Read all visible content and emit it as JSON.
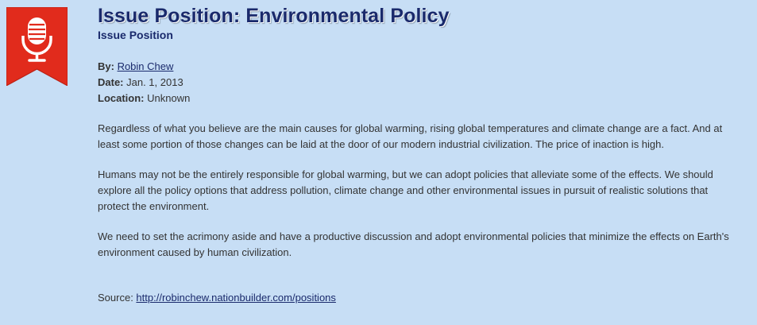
{
  "page": {
    "title": "Issue Position: Environmental Policy",
    "subtitle": "Issue Position",
    "icon": "microphone-ribbon-icon",
    "accent_color": "#e12b1c"
  },
  "meta": {
    "by_label": "By:",
    "author": "Robin Chew",
    "date_label": "Date:",
    "date": "Jan. 1, 2013",
    "location_label": "Location:",
    "location": "Unknown"
  },
  "body": {
    "paragraphs": [
      "Regardless of what you believe are the main causes for global warming, rising global temperatures and climate change are a fact. And at least some portion of those changes can be laid at the door of our modern industrial civilization. The price of inaction is high.",
      "Humans may not be the entirely responsible for global warming, but we can adopt policies that alleviate some of the effects. We should explore all the policy options that address pollution, climate change and other environmental issues in pursuit of realistic solutions that protect the environment.",
      "We need to set the acrimony aside and have a productive discussion and adopt environmental policies that minimize the effects on Earth's environment caused by human civilization."
    ]
  },
  "source": {
    "label": "Source:",
    "url_text": "http://robinchew.nationbuilder.com/positions"
  }
}
